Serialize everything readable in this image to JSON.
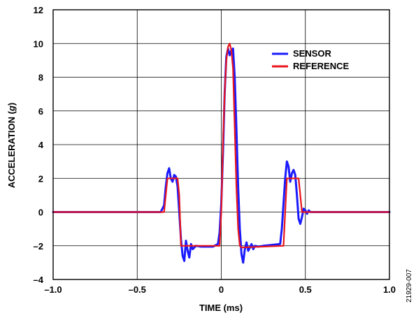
{
  "chart_data": {
    "type": "line",
    "xlabel": "TIME (ms)",
    "ylabel_main": "ACCELERATION (",
    "ylabel_unit": "g",
    "ylabel_close": ")",
    "xlim": [
      -1.0,
      1.0
    ],
    "ylim": [
      -4,
      12
    ],
    "x_ticks": [
      -1.0,
      -0.5,
      0,
      0.5,
      1.0
    ],
    "x_tick_labels": [
      "–1.0",
      "–0.5",
      "0",
      "0.5",
      "1.0"
    ],
    "y_ticks": [
      -4,
      -2,
      0,
      2,
      4,
      6,
      8,
      10,
      12
    ],
    "y_tick_labels": [
      "–4",
      "–2",
      "0",
      "2",
      "4",
      "6",
      "8",
      "10",
      "12"
    ],
    "grid": true,
    "legend_position": "top-right",
    "series": [
      {
        "name": "SENSOR",
        "color": "#1a1aff",
        "x": [
          -1.0,
          -0.36,
          -0.34,
          -0.33,
          -0.32,
          -0.31,
          -0.3,
          -0.29,
          -0.28,
          -0.27,
          -0.26,
          -0.25,
          -0.24,
          -0.23,
          -0.22,
          -0.21,
          -0.2,
          -0.19,
          -0.18,
          -0.17,
          -0.16,
          -0.15,
          -0.12,
          -0.05,
          -0.02,
          -0.01,
          0.0,
          0.01,
          0.02,
          0.03,
          0.04,
          0.05,
          0.06,
          0.07,
          0.08,
          0.09,
          0.1,
          0.11,
          0.12,
          0.13,
          0.14,
          0.15,
          0.16,
          0.17,
          0.18,
          0.19,
          0.2,
          0.22,
          0.25,
          0.35,
          0.36,
          0.37,
          0.38,
          0.39,
          0.4,
          0.41,
          0.42,
          0.43,
          0.44,
          0.45,
          0.46,
          0.47,
          0.48,
          0.49,
          0.5,
          0.51,
          0.52,
          0.53,
          0.55,
          1.0
        ],
        "y": [
          0.0,
          0.0,
          0.4,
          1.5,
          2.3,
          2.6,
          2.0,
          1.8,
          2.2,
          2.1,
          1.5,
          0.0,
          -1.6,
          -2.6,
          -2.9,
          -1.7,
          -2.3,
          -2.7,
          -1.9,
          -2.2,
          -2.1,
          -2.0,
          -2.05,
          -2.05,
          -1.9,
          -1.2,
          0.5,
          3.5,
          7.0,
          9.2,
          9.7,
          9.3,
          9.6,
          9.7,
          8.0,
          5.0,
          1.5,
          -1.0,
          -2.5,
          -3.0,
          -2.2,
          -1.8,
          -2.3,
          -2.1,
          -1.9,
          -2.2,
          -2.0,
          -2.05,
          -2.0,
          -1.9,
          -1.0,
          0.5,
          2.0,
          3.0,
          2.7,
          1.8,
          2.3,
          2.5,
          2.2,
          1.0,
          -0.4,
          -0.7,
          -0.3,
          0.2,
          0.1,
          -0.1,
          0.1,
          0.0,
          0.0,
          0.0
        ]
      },
      {
        "name": "REFERENCE",
        "color": "#e8141b",
        "x": [
          -1.0,
          -0.34,
          -0.33,
          -0.32,
          -0.26,
          -0.25,
          -0.24,
          -0.01,
          0.0,
          0.01,
          0.02,
          0.03,
          0.04,
          0.05,
          0.06,
          0.07,
          0.08,
          0.09,
          0.1,
          0.11,
          0.12,
          0.37,
          0.38,
          0.39,
          0.46,
          0.47,
          0.48,
          1.0
        ],
        "y": [
          0.0,
          0.0,
          1.0,
          2.0,
          2.0,
          1.0,
          -2.0,
          -2.0,
          0.0,
          4.0,
          7.0,
          9.0,
          9.8,
          10.0,
          9.6,
          8.5,
          5.0,
          1.5,
          -1.0,
          -2.0,
          -2.1,
          -2.0,
          0.0,
          2.0,
          2.0,
          1.0,
          0.0,
          0.0
        ]
      }
    ]
  },
  "figure_id": "21929-007"
}
